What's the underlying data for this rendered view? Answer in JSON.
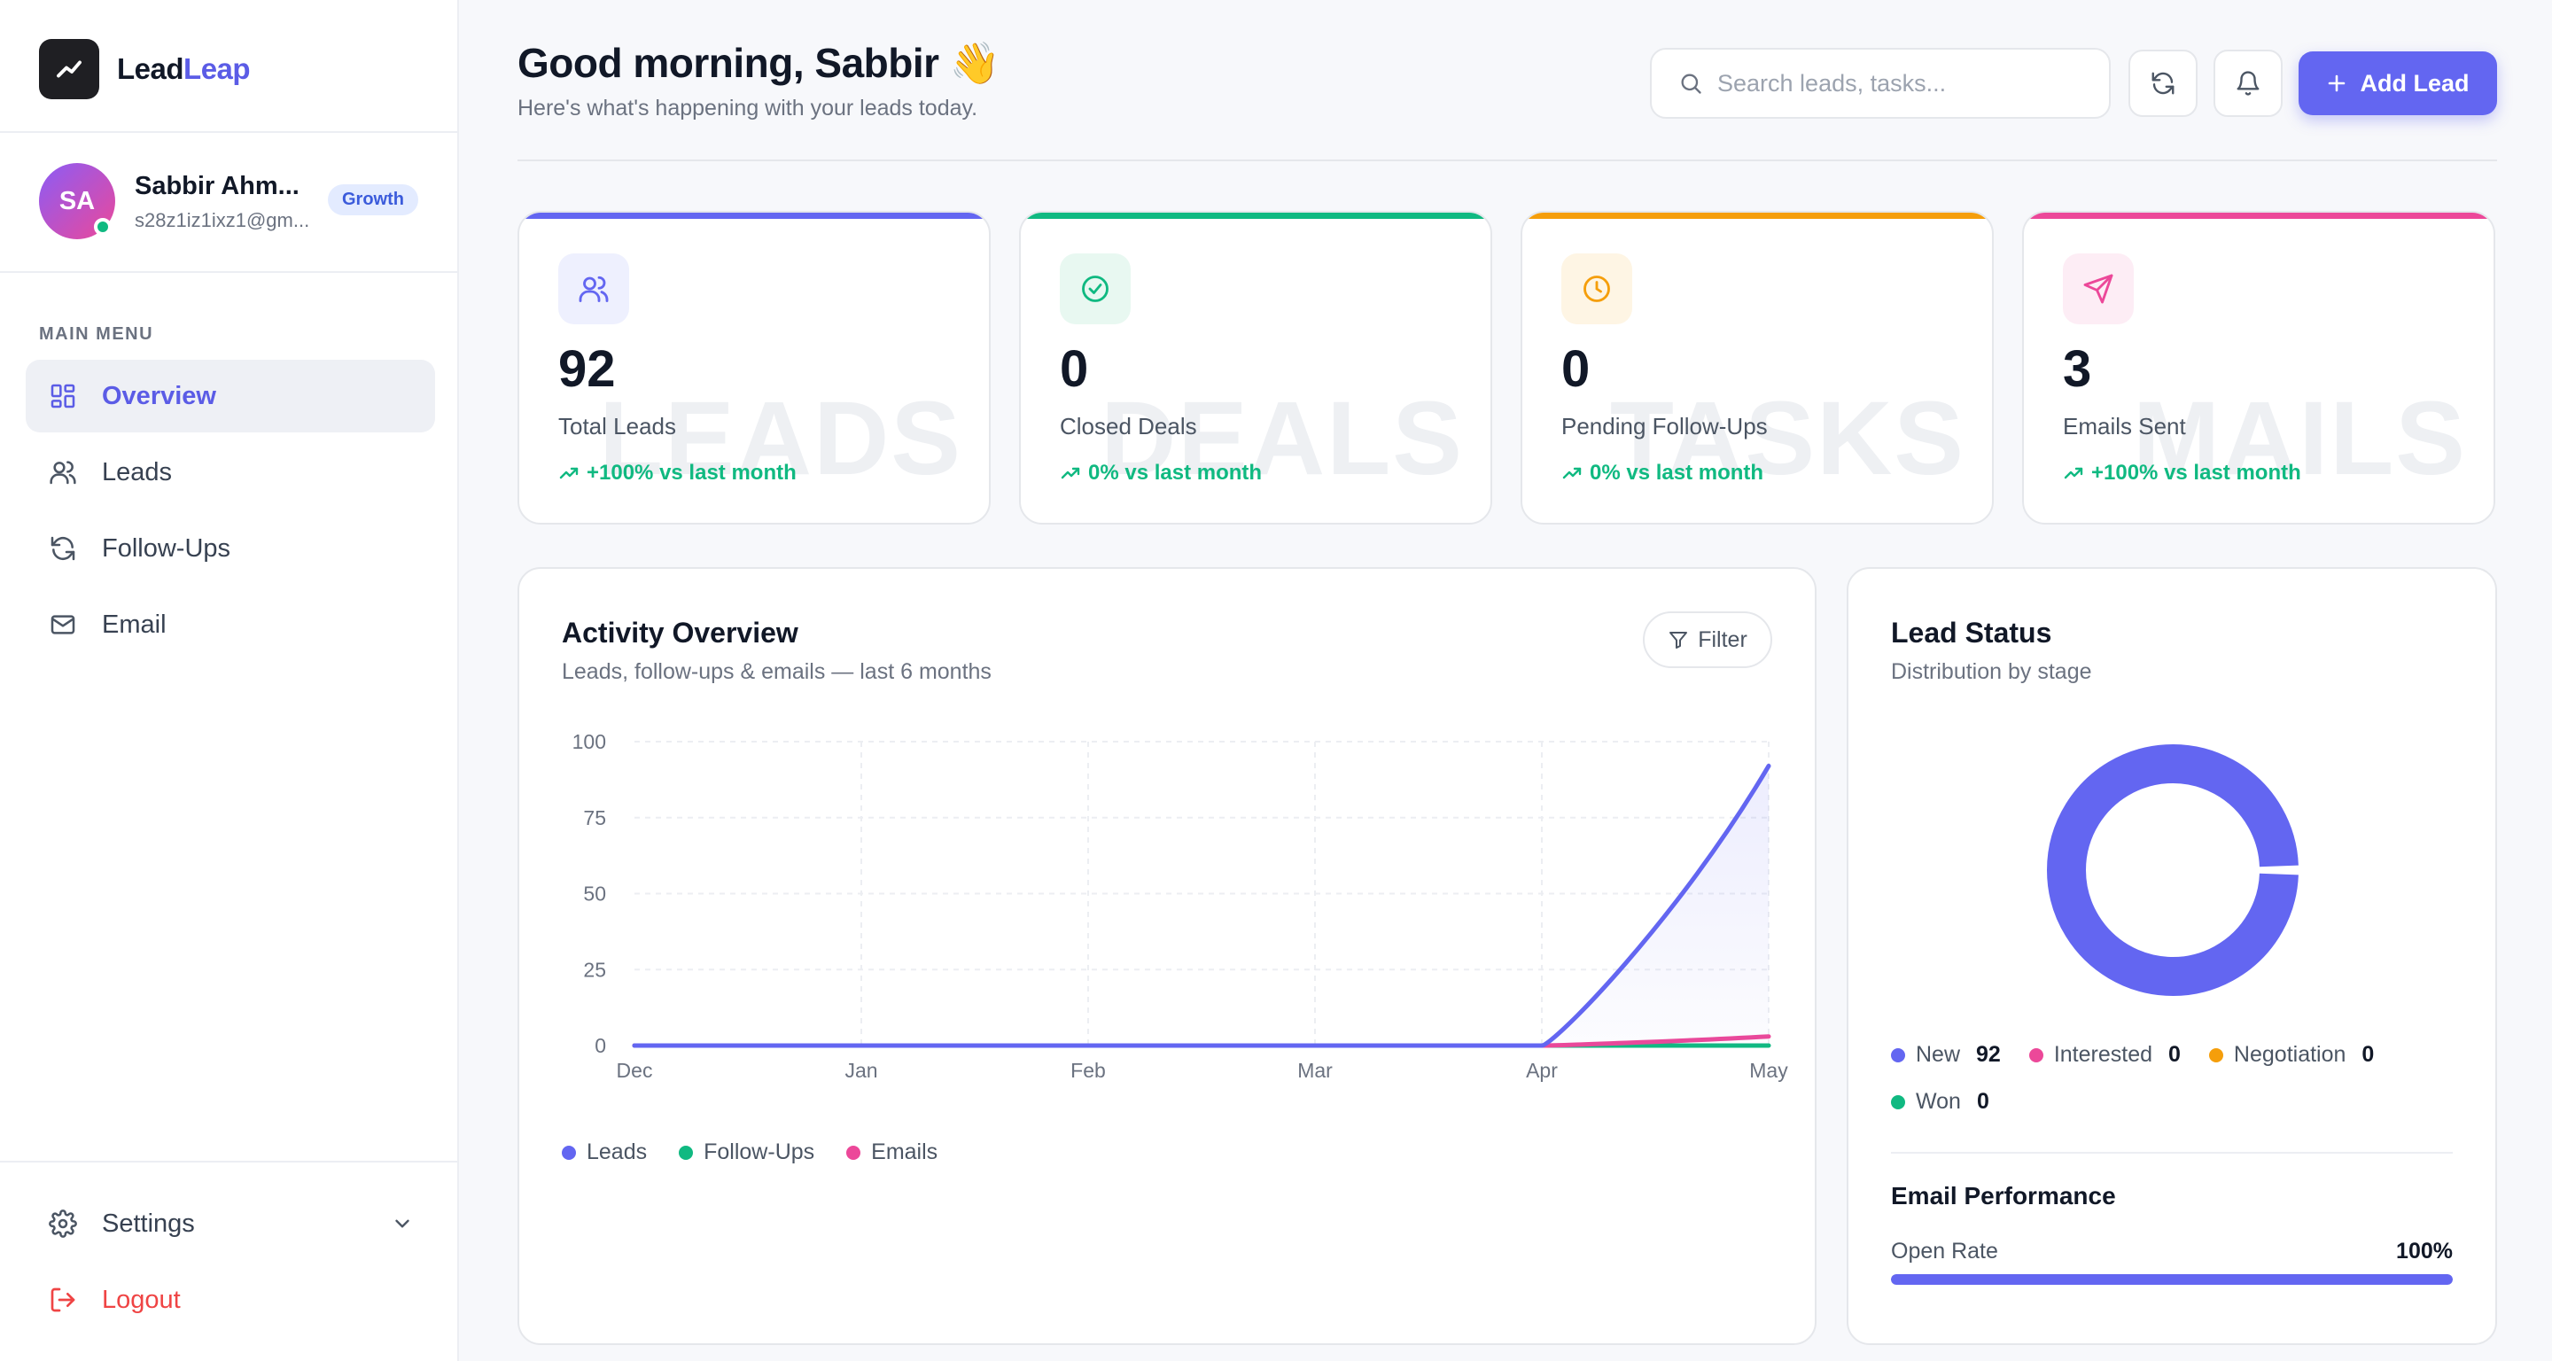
{
  "brand": {
    "part1": "Lead",
    "part2": "Leap"
  },
  "user": {
    "initials": "SA",
    "name": "Sabbir Ahm...",
    "email": "s28z1iz1ixz1@gm...",
    "plan": "Growth"
  },
  "sidebar": {
    "section_label": "MAIN MENU",
    "items": [
      {
        "label": "Overview",
        "icon": "grid-icon",
        "active": true
      },
      {
        "label": "Leads",
        "icon": "users-icon"
      },
      {
        "label": "Follow-Ups",
        "icon": "refresh-icon"
      },
      {
        "label": "Email",
        "icon": "mail-icon"
      }
    ],
    "settings_label": "Settings",
    "logout_label": "Logout"
  },
  "header": {
    "greeting": "Good morning, Sabbir 👋",
    "subtitle": "Here's what's happening with your leads today.",
    "search_placeholder": "Search leads, tasks...",
    "add_label": "Add Lead"
  },
  "stats": [
    {
      "value": "92",
      "label": "Total Leads",
      "trend": "+100% vs last month",
      "watermark": "LEADS",
      "accent": "#6366f1",
      "icon_bg": "#eef0fe",
      "icon": "users-icon"
    },
    {
      "value": "0",
      "label": "Closed Deals",
      "trend": "0% vs last month",
      "watermark": "DEALS",
      "accent": "#10b981",
      "icon_bg": "#e8f8f1",
      "icon": "check-circle-icon"
    },
    {
      "value": "0",
      "label": "Pending Follow-Ups",
      "trend": "0% vs last month",
      "watermark": "TASKS",
      "accent": "#f59e0b",
      "icon_bg": "#fef5e4",
      "icon": "clock-icon"
    },
    {
      "value": "3",
      "label": "Emails Sent",
      "trend": "+100% vs last month",
      "watermark": "MAILS",
      "accent": "#ec4899",
      "icon_bg": "#fdedf5",
      "icon": "send-icon"
    }
  ],
  "activity": {
    "title": "Activity Overview",
    "subtitle": "Leads, follow-ups & emails — last 6 months",
    "filter_label": "Filter"
  },
  "chart_data": {
    "type": "area",
    "x": [
      "Dec",
      "Jan",
      "Feb",
      "Mar",
      "Apr",
      "May"
    ],
    "yticks": [
      0,
      25,
      50,
      75,
      100
    ],
    "ylim": [
      0,
      100
    ],
    "grid": true,
    "legend": "bottom-left",
    "series": [
      {
        "name": "Leads",
        "values": [
          0,
          0,
          0,
          0,
          0,
          92
        ],
        "color": "#6366f1"
      },
      {
        "name": "Follow-Ups",
        "values": [
          0,
          0,
          0,
          0,
          0,
          0
        ],
        "color": "#10b981"
      },
      {
        "name": "Emails",
        "values": [
          0,
          0,
          0,
          0,
          0,
          3
        ],
        "color": "#ec4899"
      }
    ]
  },
  "lead_status": {
    "title": "Lead Status",
    "subtitle": "Distribution by stage",
    "items": [
      {
        "label": "New",
        "count": 92,
        "color": "#6366f1"
      },
      {
        "label": "Interested",
        "count": 0,
        "color": "#ec4899"
      },
      {
        "label": "Negotiation",
        "count": 0,
        "color": "#f59e0b"
      },
      {
        "label": "Won",
        "count": 0,
        "color": "#10b981"
      }
    ]
  },
  "email_perf": {
    "title": "Email Performance",
    "open_rate_label": "Open Rate",
    "open_rate_value": "100%",
    "open_rate": 1.0
  }
}
